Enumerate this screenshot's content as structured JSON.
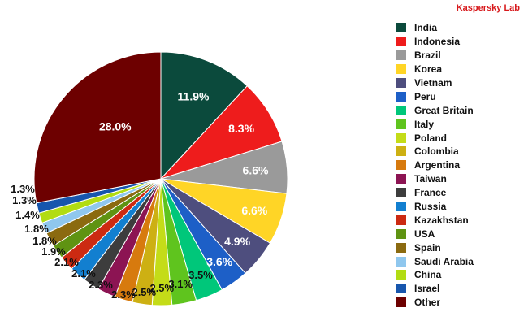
{
  "brand": "Kaspersky Lab",
  "chart_data": {
    "type": "pie",
    "title": "",
    "categories": [
      "India",
      "Indonesia",
      "Brazil",
      "Korea",
      "Vietnam",
      "Peru",
      "Great Britain",
      "Italy",
      "Poland",
      "Colombia",
      "Argentina",
      "Taiwan",
      "France",
      "Russia",
      "Kazakhstan",
      "USA",
      "Spain",
      "Saudi Arabia",
      "China",
      "Israel",
      "Other"
    ],
    "values": [
      11.9,
      8.3,
      6.6,
      6.6,
      4.9,
      3.6,
      3.5,
      3.1,
      2.5,
      2.5,
      2.3,
      2.3,
      2.1,
      2.1,
      1.9,
      1.8,
      1.8,
      1.4,
      1.3,
      1.3,
      28.0
    ],
    "data_labels": [
      "11.9%",
      "8.3%",
      "6.6%",
      "6.6%",
      "4.9%",
      "3.6%",
      "3.5%",
      "3.1%",
      "2.5%",
      "2.5%",
      "2.3%",
      "2.3%",
      "2.1%",
      "2.1%",
      "1.9%",
      "1.8%",
      "1.8%",
      "1.4%",
      "1.3%",
      "1.3%",
      "28.0%"
    ],
    "colors": [
      "#0b4a3c",
      "#ee1c1c",
      "#9a9a9a",
      "#ffd526",
      "#4e4e7e",
      "#1d5fc7",
      "#00c77a",
      "#5fc41e",
      "#c4dc18",
      "#cdb013",
      "#d77a0e",
      "#8c1453",
      "#3d3d3d",
      "#127fd0",
      "#cc2a12",
      "#5f9312",
      "#8b6a10",
      "#8fc7ee",
      "#b2dc13",
      "#1756ad",
      "#6d0000"
    ],
    "legend": {
      "placement": "right"
    }
  },
  "legend_items": [
    {
      "label": "India"
    },
    {
      "label": "Indonesia"
    },
    {
      "label": "Brazil"
    },
    {
      "label": "Korea"
    },
    {
      "label": "Vietnam"
    },
    {
      "label": "Peru"
    },
    {
      "label": "Great Britain"
    },
    {
      "label": "Italy"
    },
    {
      "label": "Poland"
    },
    {
      "label": "Colombia"
    },
    {
      "label": "Argentina"
    },
    {
      "label": "Taiwan"
    },
    {
      "label": "France"
    },
    {
      "label": "Russia"
    },
    {
      "label": "Kazakhstan"
    },
    {
      "label": "USA"
    },
    {
      "label": "Spain"
    },
    {
      "label": "Saudi Arabia"
    },
    {
      "label": "China"
    },
    {
      "label": "Israel"
    },
    {
      "label": "Other"
    }
  ]
}
